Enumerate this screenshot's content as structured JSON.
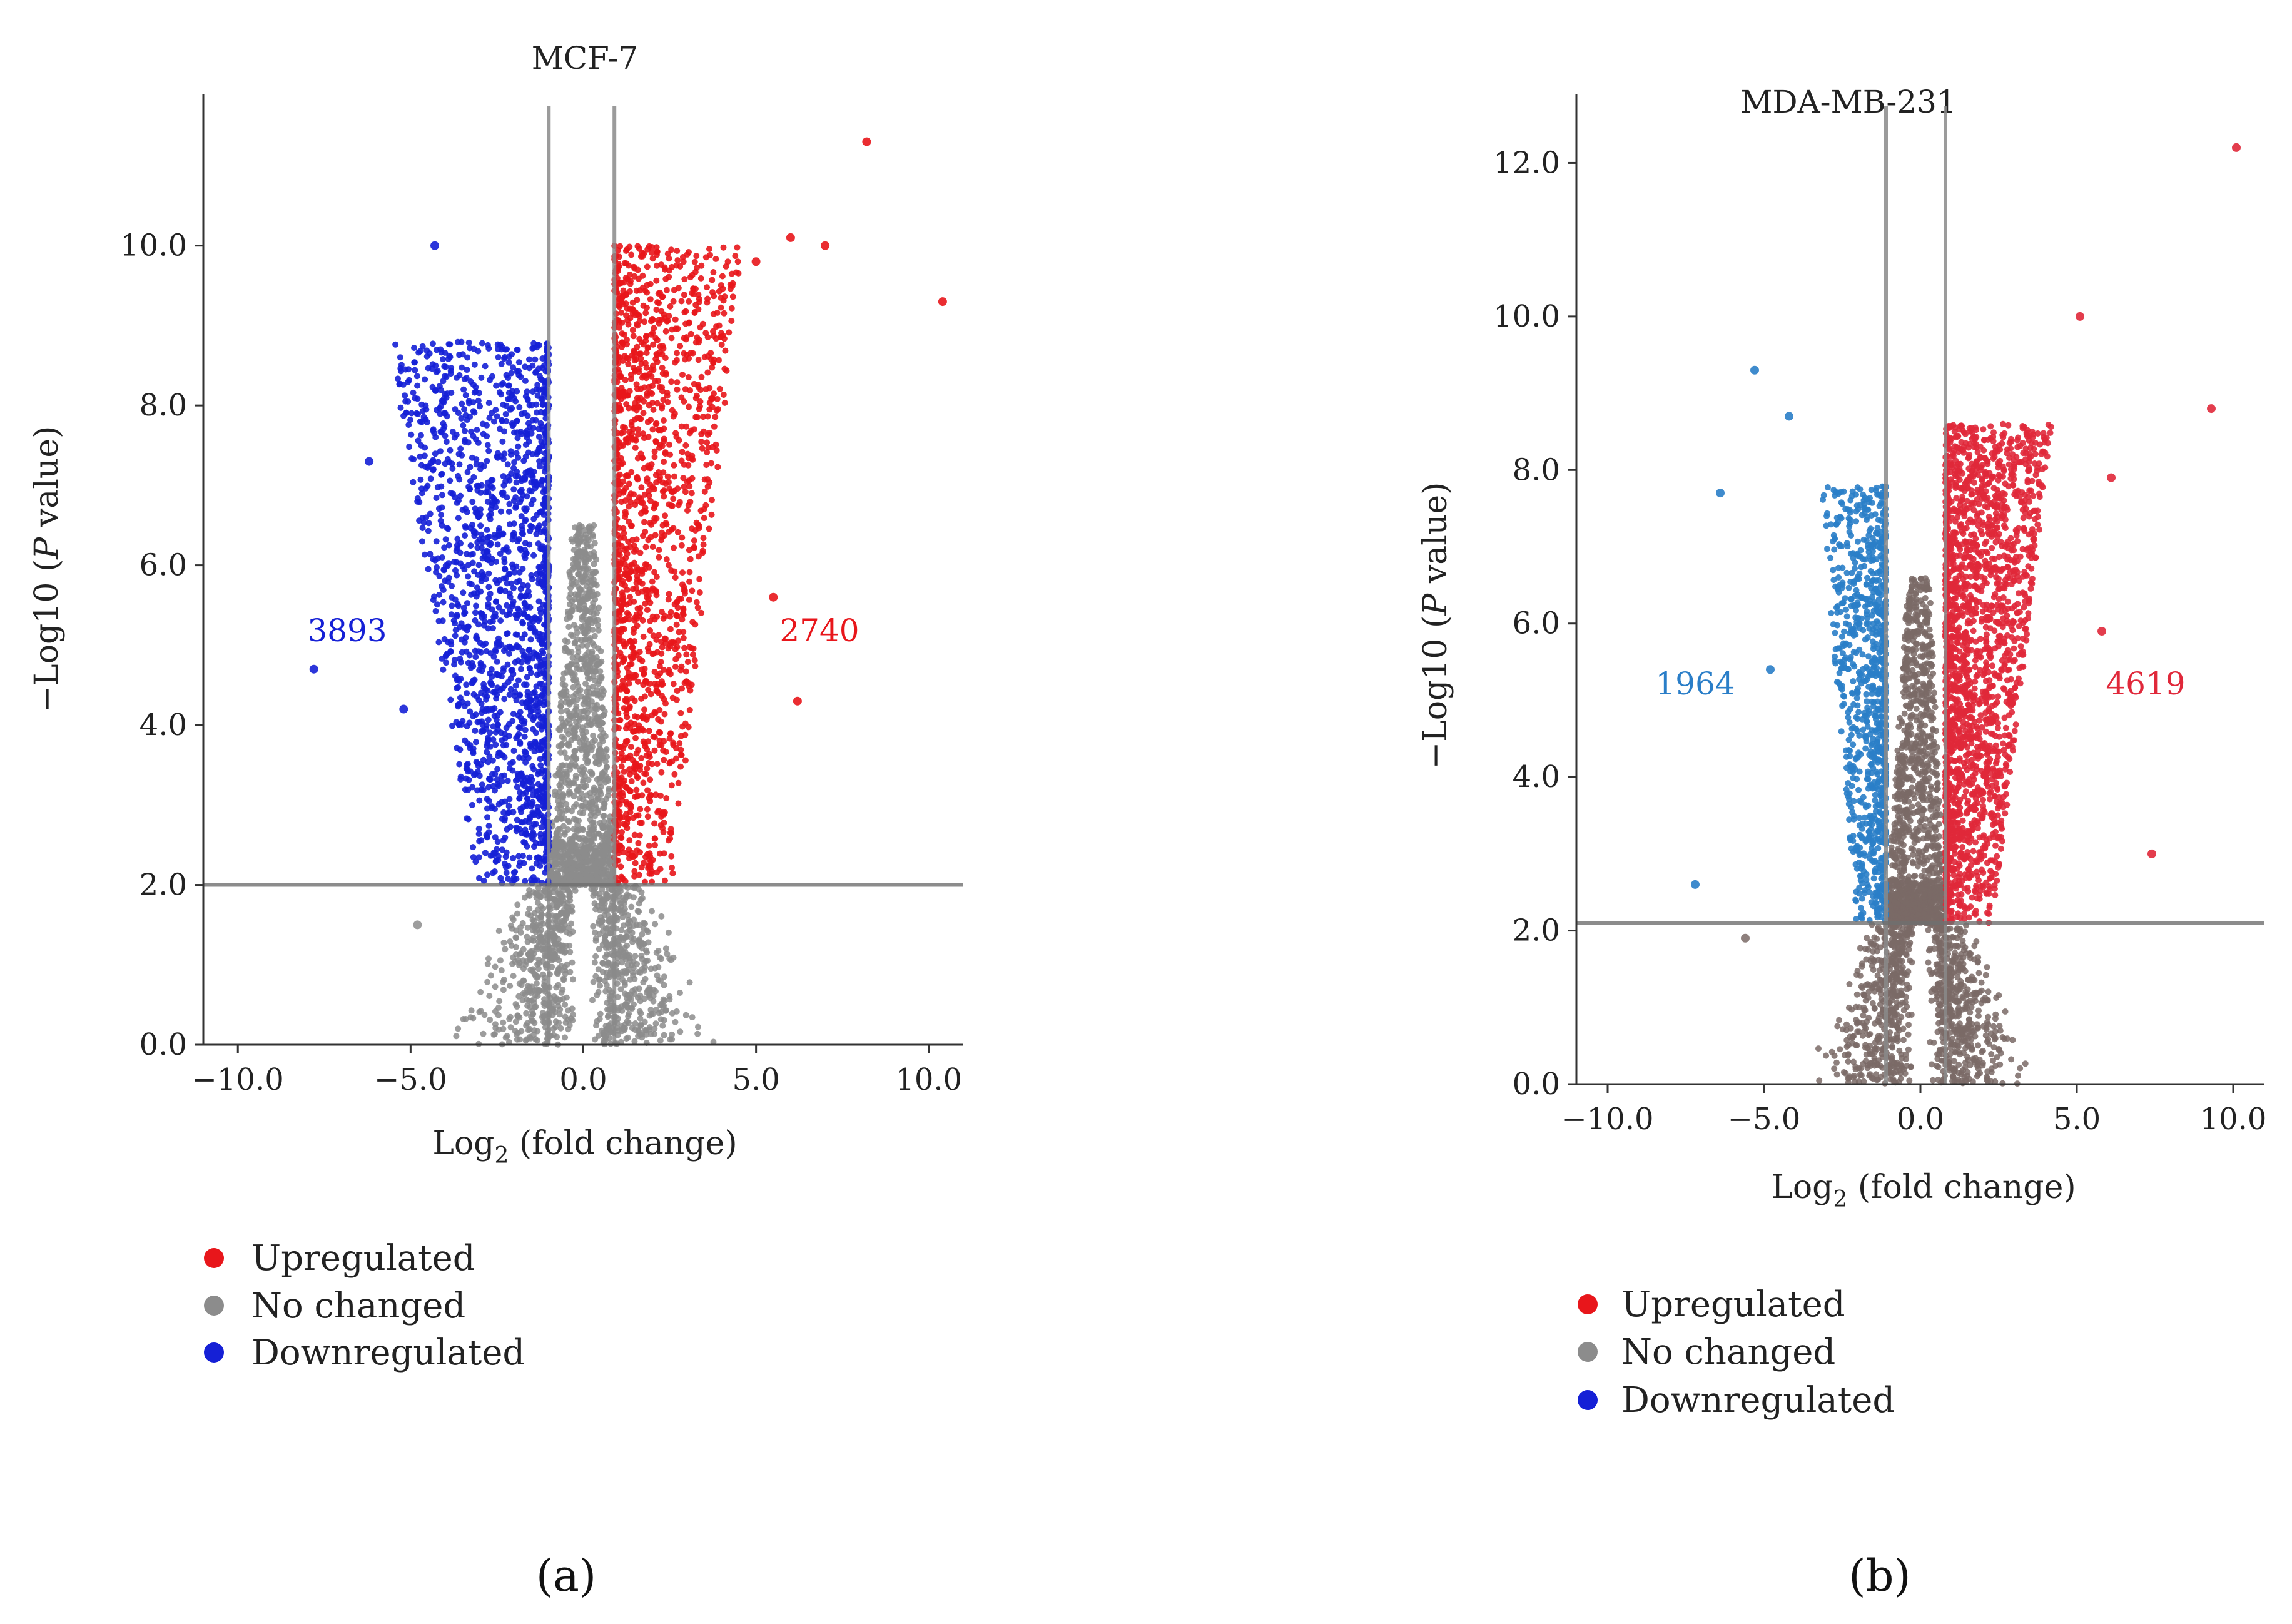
{
  "chart_data": [
    {
      "panel_caption": "(a)",
      "type": "scatter",
      "subtype": "volcano",
      "title": "MCF-7",
      "xlabel_main": "Log",
      "xlabel_sub": "2",
      "xlabel_rest": " (fold change)",
      "ylabel_pre": "−Log10 (",
      "ylabel_italic": "P",
      "ylabel_post": " value)",
      "xlim": [
        -11.0,
        11.0
      ],
      "ylim": [
        0,
        11.9
      ],
      "xticks": [
        -10,
        -5,
        0,
        5,
        10
      ],
      "xtick_labels": [
        "−10.0",
        "−5.0",
        "0.0",
        "5.0",
        "10.0"
      ],
      "yticks": [
        0,
        2,
        4,
        6,
        8,
        10
      ],
      "ytick_labels": [
        "0.0",
        "2.0",
        "4.0",
        "6.0",
        "8.0",
        "10.0"
      ],
      "thresholds": {
        "log2fc": [
          -1.0,
          0.9
        ],
        "neg_log10_p": 2.0
      },
      "counts": {
        "down": "3893",
        "up": "2740"
      },
      "colors": {
        "up": "#e8161b",
        "none": "#8c8c8c",
        "down": "#1520d6"
      },
      "envelope": {
        "down_min": -5.6,
        "up_max": 4.6,
        "none_half_width": 3.4,
        "ymax_down": 8.8,
        "ymax_up": 10.0
      },
      "outliers": [
        {
          "x": 8.2,
          "y": 11.3,
          "group": "up"
        },
        {
          "x": 10.4,
          "y": 9.3,
          "group": "up"
        },
        {
          "x": 7.0,
          "y": 10.0,
          "group": "up"
        },
        {
          "x": 6.0,
          "y": 10.1,
          "group": "up"
        },
        {
          "x": 5.0,
          "y": 9.8,
          "group": "up"
        },
        {
          "x": 6.2,
          "y": 4.3,
          "group": "up"
        },
        {
          "x": 5.5,
          "y": 5.6,
          "group": "up"
        },
        {
          "x": -4.3,
          "y": 10.0,
          "group": "down"
        },
        {
          "x": -7.8,
          "y": 4.7,
          "group": "down"
        },
        {
          "x": -5.2,
          "y": 4.2,
          "group": "down"
        },
        {
          "x": -6.2,
          "y": 7.3,
          "group": "down"
        },
        {
          "x": -4.8,
          "y": 1.5,
          "group": "none"
        }
      ],
      "seed": 11,
      "n": {
        "down": 1700,
        "up": 1500,
        "none": 2200
      }
    },
    {
      "panel_caption": "(b)",
      "type": "scatter",
      "subtype": "volcano",
      "title": "MDA-MB-231",
      "xlabel_main": "Log",
      "xlabel_sub": "2",
      "xlabel_rest": " (fold change)",
      "ylabel_pre": "−Log10 (",
      "ylabel_italic": "P",
      "ylabel_post": " value)",
      "xlim": [
        -11.0,
        11.0
      ],
      "ylim": [
        0,
        12.9
      ],
      "xticks": [
        -10,
        -5,
        0,
        5,
        10
      ],
      "xtick_labels": [
        "−10.0",
        "−5.0",
        "0.0",
        "5.0",
        "10.0"
      ],
      "yticks": [
        0,
        2,
        4,
        6,
        8,
        10,
        12
      ],
      "ytick_labels": [
        "0.0",
        "2.0",
        "4.0",
        "6.0",
        "8.0",
        "10.0",
        "12.0"
      ],
      "thresholds": {
        "log2fc": [
          -1.1,
          0.8
        ],
        "neg_log10_p": 2.1
      },
      "counts": {
        "down": "1964",
        "up": "4619"
      },
      "colors": {
        "up": "#e0283a",
        "none": "#7a6a66",
        "down": "#2a7ec8"
      },
      "envelope": {
        "down_min": -3.2,
        "up_max": 4.2,
        "none_half_width": 3.0,
        "ymax_down": 7.8,
        "ymax_up": 8.6
      },
      "outliers": [
        {
          "x": 10.1,
          "y": 12.2,
          "group": "up"
        },
        {
          "x": 5.1,
          "y": 10.0,
          "group": "up"
        },
        {
          "x": 9.3,
          "y": 8.8,
          "group": "up"
        },
        {
          "x": 7.4,
          "y": 3.0,
          "group": "up"
        },
        {
          "x": 6.1,
          "y": 7.9,
          "group": "up"
        },
        {
          "x": 5.8,
          "y": 5.9,
          "group": "up"
        },
        {
          "x": -5.3,
          "y": 9.3,
          "group": "down"
        },
        {
          "x": -4.2,
          "y": 8.7,
          "group": "down"
        },
        {
          "x": -6.4,
          "y": 7.7,
          "group": "down"
        },
        {
          "x": -4.8,
          "y": 5.4,
          "group": "down"
        },
        {
          "x": -7.2,
          "y": 2.6,
          "group": "down"
        },
        {
          "x": -5.6,
          "y": 1.9,
          "group": "none"
        }
      ],
      "seed": 29,
      "n": {
        "down": 900,
        "up": 2000,
        "none": 2200
      }
    }
  ],
  "legend": {
    "items": [
      {
        "key": "up",
        "label": "Upregulated",
        "color": "#e8161b"
      },
      {
        "key": "none",
        "label": "No changed",
        "color": "#8c8c8c"
      },
      {
        "key": "down",
        "label": "Downregulated",
        "color": "#1520d6"
      }
    ]
  }
}
